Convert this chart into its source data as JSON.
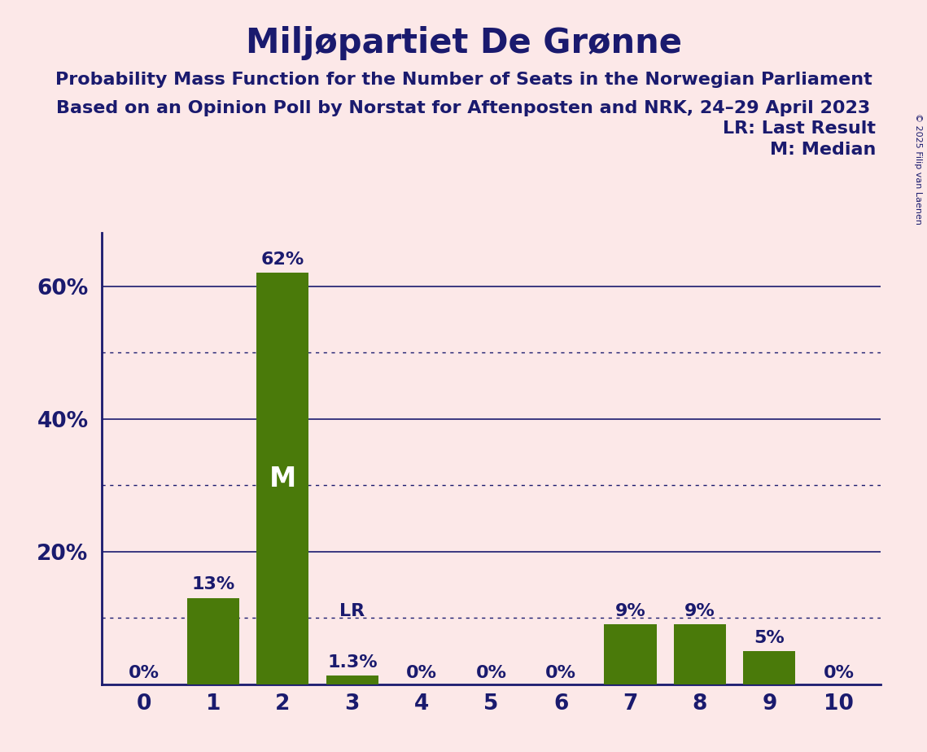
{
  "title": "Miljøpartiet De Grønne",
  "subtitle1": "Probability Mass Function for the Number of Seats in the Norwegian Parliament",
  "subtitle2": "Based on an Opinion Poll by Norstat for Aftenposten and NRK, 24–29 April 2023",
  "copyright": "© 2025 Filip van Laenen",
  "categories": [
    0,
    1,
    2,
    3,
    4,
    5,
    6,
    7,
    8,
    9,
    10
  ],
  "values": [
    0.0,
    13.0,
    62.0,
    1.3,
    0.0,
    0.0,
    0.0,
    9.0,
    9.0,
    5.0,
    0.0
  ],
  "bar_color": "#4a7a0a",
  "background_color": "#fce8e8",
  "text_color": "#1a1a6e",
  "bar_labels": [
    "0%",
    "13%",
    "62%",
    "1.3%",
    "0%",
    "0%",
    "0%",
    "9%",
    "9%",
    "5%",
    "0%"
  ],
  "last_result": 3,
  "median": 2,
  "median_label": "M",
  "lr_label": "LR",
  "legend_lr": "LR: Last Result",
  "legend_m": "M: Median",
  "ylim": [
    0,
    68
  ],
  "yticks": [
    0,
    20,
    40,
    60
  ],
  "ytick_labels": [
    "",
    "20%",
    "40%",
    "60%"
  ],
  "dotted_lines": [
    10,
    30,
    50
  ],
  "solid_lines": [
    20,
    40,
    60
  ],
  "title_fontsize": 30,
  "subtitle_fontsize": 16,
  "tick_fontsize": 19,
  "label_fontsize": 16,
  "legend_fontsize": 16
}
